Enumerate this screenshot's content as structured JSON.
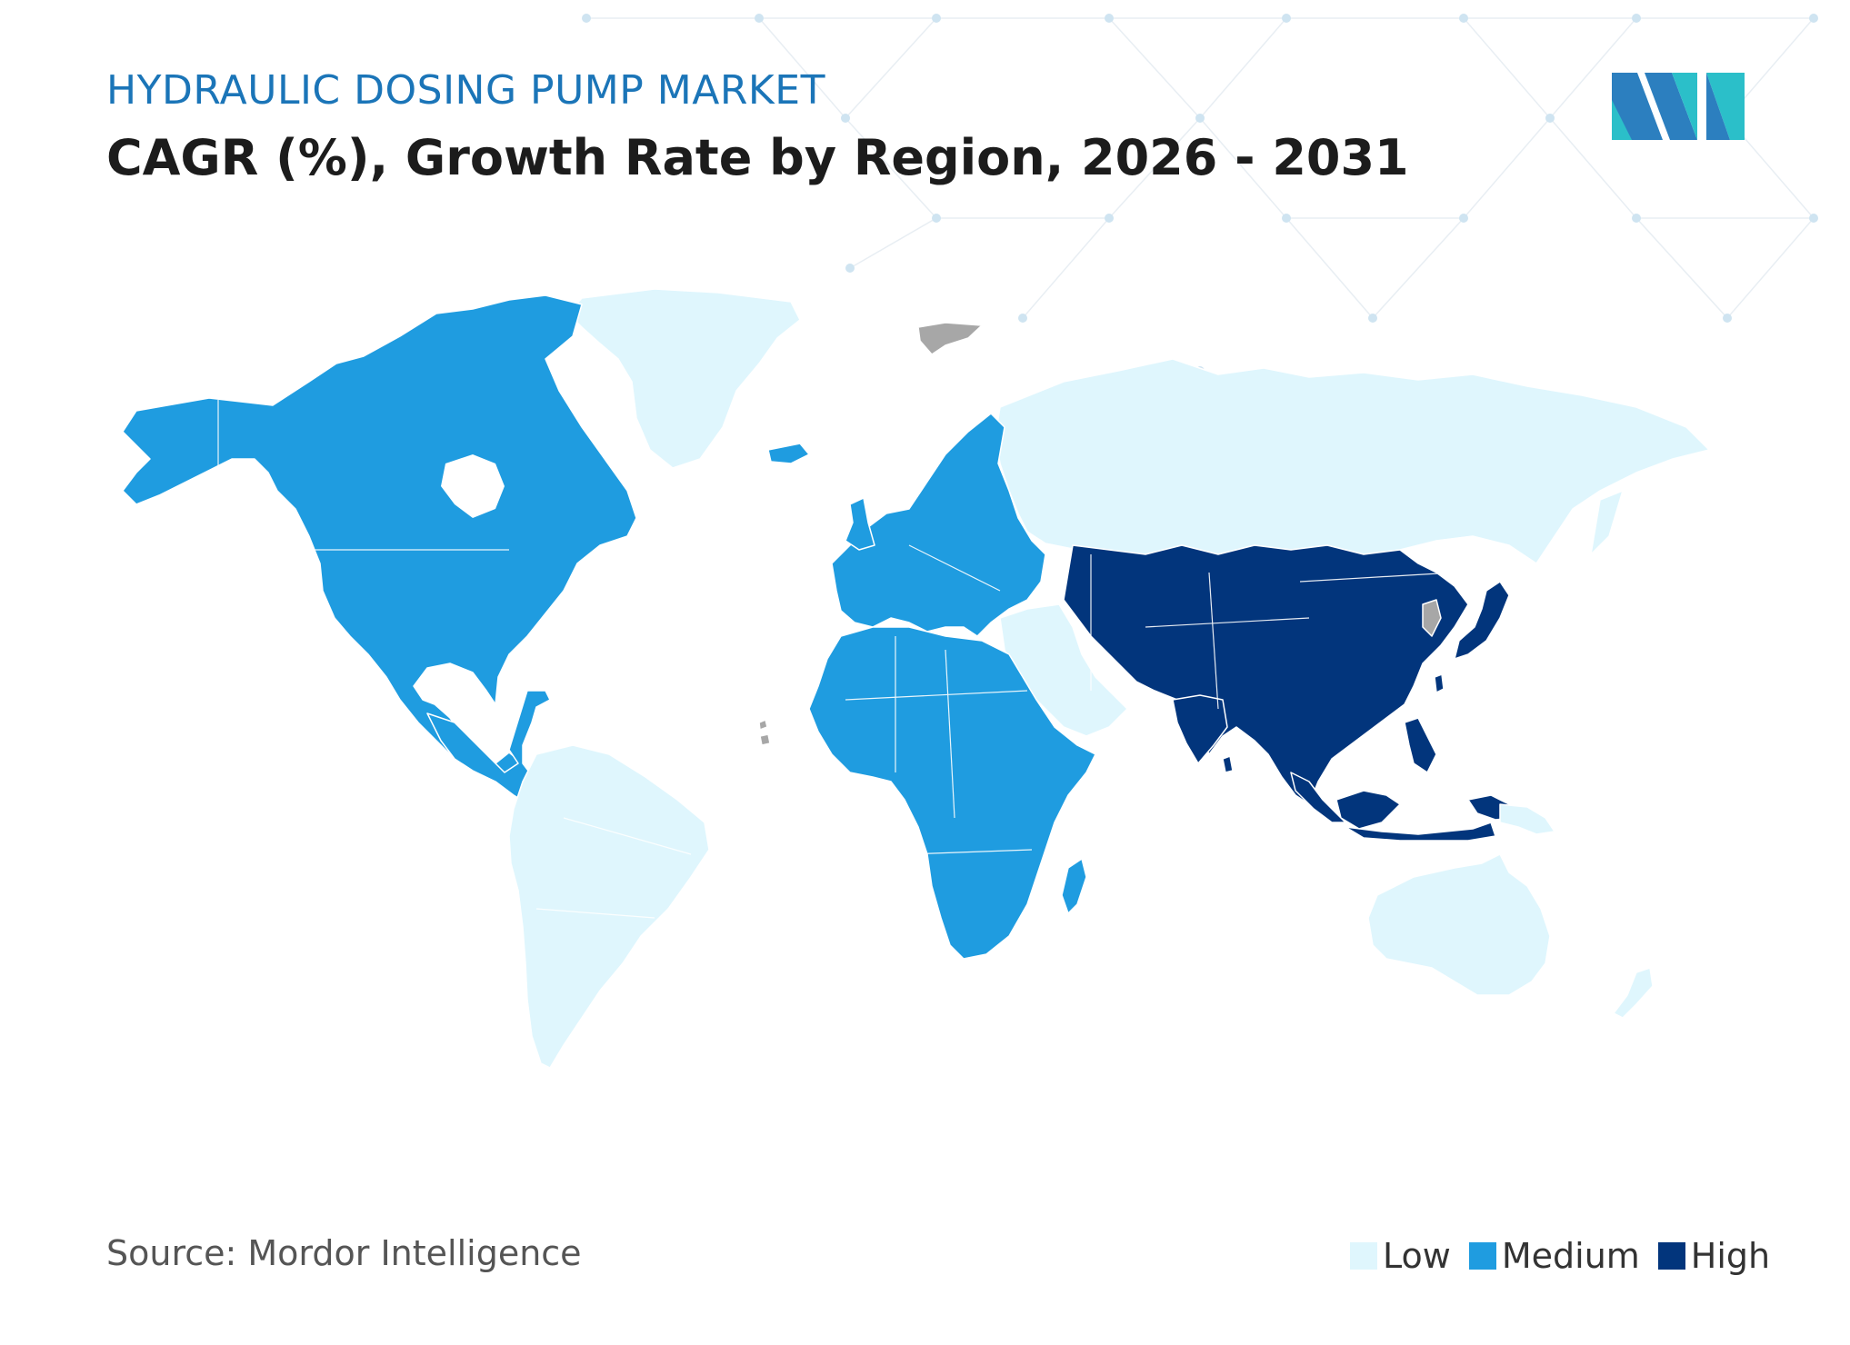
{
  "header": {
    "subtitle": "HYDRAULIC DOSING PUMP MARKET",
    "title": "CAGR (%), Growth Rate by Region, 2026 - 2031"
  },
  "footer": {
    "source": "Source: Mordor Intelligence"
  },
  "logo_icon": "mordor-intelligence-logo-icon",
  "legend": [
    {
      "label": "Low",
      "color": "#dff6fd"
    },
    {
      "label": "Medium",
      "color": "#1f9ce0"
    },
    {
      "label": "High",
      "color": "#02357c"
    }
  ],
  "colors": {
    "low": "#dff6fd",
    "medium": "#1f9ce0",
    "high": "#02357c",
    "no_data": "#a7a7a7",
    "subtitle": "#1b75b8"
  },
  "regions": {
    "north_america": "Medium",
    "europe": "Medium",
    "africa": "Medium",
    "asia_pacific": "High",
    "south_america": "Low",
    "russia": "Low",
    "middle_east": "Low",
    "australia": "Low",
    "greenland": "Low"
  }
}
